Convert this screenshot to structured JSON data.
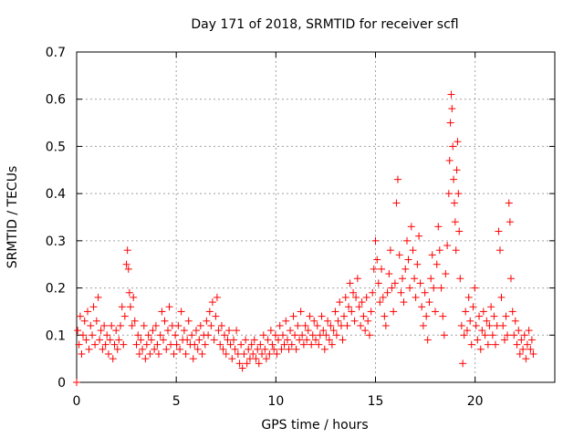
{
  "chart_data": {
    "type": "scatter",
    "title": "Day 171 of 2018, SRMTID for receiver scfl",
    "xlabel": "GPS time / hours",
    "ylabel": "SRMTID / TECUs",
    "xlim": [
      0,
      24
    ],
    "ylim": [
      0,
      0.7
    ],
    "xticks": [
      0,
      5,
      10,
      15,
      20
    ],
    "yticks": [
      0,
      0.1,
      0.2,
      0.3,
      0.4,
      0.5,
      0.6,
      0.7
    ],
    "xtick_labels": [
      "0",
      "5",
      "10",
      "15",
      "20"
    ],
    "ytick_labels": [
      "0",
      "0.1",
      "0.2",
      "0.3",
      "0.4",
      "0.5",
      "0.6",
      "0.7"
    ],
    "grid": true,
    "marker": "+",
    "colors": {
      "series": "#ff0000",
      "axis": "#000000",
      "grid": "#a0a0a0",
      "background": "#ffffff"
    },
    "series": [
      {
        "name": "SRMTID",
        "points": [
          [
            0.0,
            0.0
          ],
          [
            0.05,
            0.11
          ],
          [
            0.12,
            0.08
          ],
          [
            0.18,
            0.14
          ],
          [
            0.25,
            0.06
          ],
          [
            0.32,
            0.1
          ],
          [
            0.4,
            0.13
          ],
          [
            0.48,
            0.09
          ],
          [
            0.55,
            0.15
          ],
          [
            0.62,
            0.07
          ],
          [
            0.7,
            0.12
          ],
          [
            0.78,
            0.1
          ],
          [
            0.85,
            0.16
          ],
          [
            0.92,
            0.08
          ],
          [
            1.0,
            0.13
          ],
          [
            1.08,
            0.18
          ],
          [
            1.15,
            0.09
          ],
          [
            1.22,
            0.11
          ],
          [
            1.3,
            0.07
          ],
          [
            1.38,
            0.12
          ],
          [
            1.45,
            0.08
          ],
          [
            1.52,
            0.1
          ],
          [
            1.6,
            0.06
          ],
          [
            1.68,
            0.09
          ],
          [
            1.75,
            0.12
          ],
          [
            1.82,
            0.05
          ],
          [
            1.9,
            0.08
          ],
          [
            1.98,
            0.11
          ],
          [
            2.05,
            0.07
          ],
          [
            2.12,
            0.09
          ],
          [
            2.2,
            0.12
          ],
          [
            2.28,
            0.16
          ],
          [
            2.35,
            0.08
          ],
          [
            2.42,
            0.14
          ],
          [
            2.5,
            0.25
          ],
          [
            2.55,
            0.28
          ],
          [
            2.6,
            0.24
          ],
          [
            2.65,
            0.19
          ],
          [
            2.7,
            0.16
          ],
          [
            2.78,
            0.12
          ],
          [
            2.85,
            0.18
          ],
          [
            2.92,
            0.13
          ],
          [
            3.0,
            0.08
          ],
          [
            3.08,
            0.1
          ],
          [
            3.15,
            0.06
          ],
          [
            3.22,
            0.09
          ],
          [
            3.3,
            0.07
          ],
          [
            3.38,
            0.12
          ],
          [
            3.45,
            0.05
          ],
          [
            3.52,
            0.08
          ],
          [
            3.6,
            0.1
          ],
          [
            3.68,
            0.06
          ],
          [
            3.75,
            0.09
          ],
          [
            3.82,
            0.11
          ],
          [
            3.9,
            0.07
          ],
          [
            3.98,
            0.12
          ],
          [
            4.05,
            0.08
          ],
          [
            4.12,
            0.06
          ],
          [
            4.2,
            0.1
          ],
          [
            4.28,
            0.15
          ],
          [
            4.35,
            0.09
          ],
          [
            4.42,
            0.13
          ],
          [
            4.5,
            0.07
          ],
          [
            4.58,
            0.11
          ],
          [
            4.65,
            0.16
          ],
          [
            4.72,
            0.08
          ],
          [
            4.8,
            0.12
          ],
          [
            4.88,
            0.06
          ],
          [
            4.95,
            0.1
          ],
          [
            5.02,
            0.08
          ],
          [
            5.1,
            0.12
          ],
          [
            5.18,
            0.07
          ],
          [
            5.25,
            0.15
          ],
          [
            5.32,
            0.09
          ],
          [
            5.4,
            0.11
          ],
          [
            5.48,
            0.06
          ],
          [
            5.55,
            0.09
          ],
          [
            5.62,
            0.13
          ],
          [
            5.7,
            0.08
          ],
          [
            5.78,
            0.1
          ],
          [
            5.85,
            0.05
          ],
          [
            5.92,
            0.08
          ],
          [
            6.0,
            0.11
          ],
          [
            6.08,
            0.07
          ],
          [
            6.15,
            0.09
          ],
          [
            6.22,
            0.12
          ],
          [
            6.3,
            0.06
          ],
          [
            6.38,
            0.1
          ],
          [
            6.45,
            0.08
          ],
          [
            6.52,
            0.13
          ],
          [
            6.6,
            0.1
          ],
          [
            6.68,
            0.15
          ],
          [
            6.75,
            0.12
          ],
          [
            6.82,
            0.17
          ],
          [
            6.9,
            0.09
          ],
          [
            6.98,
            0.14
          ],
          [
            7.05,
            0.18
          ],
          [
            7.12,
            0.11
          ],
          [
            7.2,
            0.08
          ],
          [
            7.28,
            0.12
          ],
          [
            7.35,
            0.07
          ],
          [
            7.42,
            0.1
          ],
          [
            7.5,
            0.06
          ],
          [
            7.58,
            0.09
          ],
          [
            7.65,
            0.11
          ],
          [
            7.72,
            0.08
          ],
          [
            7.8,
            0.05
          ],
          [
            7.88,
            0.09
          ],
          [
            7.95,
            0.07
          ],
          [
            8.02,
            0.11
          ],
          [
            8.1,
            0.06
          ],
          [
            8.18,
            0.04
          ],
          [
            8.25,
            0.08
          ],
          [
            8.32,
            0.03
          ],
          [
            8.4,
            0.06
          ],
          [
            8.48,
            0.09
          ],
          [
            8.55,
            0.04
          ],
          [
            8.62,
            0.07
          ],
          [
            8.7,
            0.05
          ],
          [
            8.78,
            0.08
          ],
          [
            8.85,
            0.06
          ],
          [
            8.92,
            0.09
          ],
          [
            9.0,
            0.05
          ],
          [
            9.08,
            0.07
          ],
          [
            9.15,
            0.04
          ],
          [
            9.22,
            0.08
          ],
          [
            9.3,
            0.06
          ],
          [
            9.38,
            0.1
          ],
          [
            9.45,
            0.07
          ],
          [
            9.52,
            0.05
          ],
          [
            9.6,
            0.09
          ],
          [
            9.68,
            0.06
          ],
          [
            9.75,
            0.11
          ],
          [
            9.82,
            0.08
          ],
          [
            9.9,
            0.07
          ],
          [
            9.98,
            0.1
          ],
          [
            10.05,
            0.06
          ],
          [
            10.12,
            0.09
          ],
          [
            10.2,
            0.12
          ],
          [
            10.28,
            0.07
          ],
          [
            10.35,
            0.1
          ],
          [
            10.42,
            0.08
          ],
          [
            10.5,
            0.13
          ],
          [
            10.58,
            0.09
          ],
          [
            10.65,
            0.07
          ],
          [
            10.72,
            0.11
          ],
          [
            10.8,
            0.08
          ],
          [
            10.88,
            0.14
          ],
          [
            10.95,
            0.1
          ],
          [
            11.02,
            0.07
          ],
          [
            11.1,
            0.12
          ],
          [
            11.18,
            0.09
          ],
          [
            11.25,
            0.15
          ],
          [
            11.32,
            0.1
          ],
          [
            11.4,
            0.08
          ],
          [
            11.48,
            0.12
          ],
          [
            11.55,
            0.09
          ],
          [
            11.62,
            0.11
          ],
          [
            11.7,
            0.14
          ],
          [
            11.78,
            0.08
          ],
          [
            11.85,
            0.1
          ],
          [
            11.92,
            0.13
          ],
          [
            12.0,
            0.09
          ],
          [
            12.08,
            0.12
          ],
          [
            12.15,
            0.08
          ],
          [
            12.22,
            0.1
          ],
          [
            12.3,
            0.14
          ],
          [
            12.38,
            0.11
          ],
          [
            12.45,
            0.07
          ],
          [
            12.52,
            0.1
          ],
          [
            12.6,
            0.13
          ],
          [
            12.68,
            0.09
          ],
          [
            12.75,
            0.12
          ],
          [
            12.82,
            0.08
          ],
          [
            12.9,
            0.11
          ],
          [
            12.98,
            0.15
          ],
          [
            13.05,
            0.1
          ],
          [
            13.12,
            0.13
          ],
          [
            13.2,
            0.17
          ],
          [
            13.28,
            0.12
          ],
          [
            13.35,
            0.09
          ],
          [
            13.42,
            0.14
          ],
          [
            13.5,
            0.18
          ],
          [
            13.58,
            0.12
          ],
          [
            13.65,
            0.16
          ],
          [
            13.72,
            0.21
          ],
          [
            13.8,
            0.15
          ],
          [
            13.88,
            0.19
          ],
          [
            13.95,
            0.13
          ],
          [
            14.02,
            0.18
          ],
          [
            14.1,
            0.22
          ],
          [
            14.18,
            0.16
          ],
          [
            14.25,
            0.12
          ],
          [
            14.32,
            0.17
          ],
          [
            14.4,
            0.14
          ],
          [
            14.48,
            0.11
          ],
          [
            14.55,
            0.18
          ],
          [
            14.62,
            0.13
          ],
          [
            14.7,
            0.1
          ],
          [
            14.78,
            0.15
          ],
          [
            14.85,
            0.19
          ],
          [
            14.92,
            0.24
          ],
          [
            15.0,
            0.3
          ],
          [
            15.08,
            0.26
          ],
          [
            15.15,
            0.21
          ],
          [
            15.22,
            0.17
          ],
          [
            15.3,
            0.24
          ],
          [
            15.38,
            0.18
          ],
          [
            15.45,
            0.14
          ],
          [
            15.52,
            0.12
          ],
          [
            15.6,
            0.19
          ],
          [
            15.68,
            0.23
          ],
          [
            15.75,
            0.28
          ],
          [
            15.82,
            0.2
          ],
          [
            15.9,
            0.15
          ],
          [
            15.98,
            0.21
          ],
          [
            16.05,
            0.38
          ],
          [
            16.12,
            0.43
          ],
          [
            16.2,
            0.27
          ],
          [
            16.28,
            0.19
          ],
          [
            16.35,
            0.22
          ],
          [
            16.42,
            0.17
          ],
          [
            16.5,
            0.24
          ],
          [
            16.58,
            0.3
          ],
          [
            16.65,
            0.26
          ],
          [
            16.72,
            0.2
          ],
          [
            16.8,
            0.33
          ],
          [
            16.88,
            0.28
          ],
          [
            16.95,
            0.22
          ],
          [
            17.02,
            0.18
          ],
          [
            17.1,
            0.25
          ],
          [
            17.18,
            0.31
          ],
          [
            17.25,
            0.21
          ],
          [
            17.32,
            0.16
          ],
          [
            17.4,
            0.12
          ],
          [
            17.48,
            0.19
          ],
          [
            17.55,
            0.14
          ],
          [
            17.62,
            0.09
          ],
          [
            17.7,
            0.17
          ],
          [
            17.78,
            0.22
          ],
          [
            17.85,
            0.27
          ],
          [
            17.92,
            0.2
          ],
          [
            18.0,
            0.15
          ],
          [
            18.08,
            0.25
          ],
          [
            18.15,
            0.33
          ],
          [
            18.22,
            0.28
          ],
          [
            18.3,
            0.2
          ],
          [
            18.38,
            0.14
          ],
          [
            18.45,
            0.1
          ],
          [
            18.52,
            0.23
          ],
          [
            18.6,
            0.29
          ],
          [
            18.68,
            0.4
          ],
          [
            18.72,
            0.47
          ],
          [
            18.76,
            0.55
          ],
          [
            18.8,
            0.61
          ],
          [
            18.84,
            0.58
          ],
          [
            18.88,
            0.5
          ],
          [
            18.92,
            0.43
          ],
          [
            18.96,
            0.38
          ],
          [
            19.0,
            0.34
          ],
          [
            19.04,
            0.28
          ],
          [
            19.08,
            0.45
          ],
          [
            19.12,
            0.51
          ],
          [
            19.16,
            0.4
          ],
          [
            19.2,
            0.32
          ],
          [
            19.25,
            0.22
          ],
          [
            19.32,
            0.12
          ],
          [
            19.38,
            0.04
          ],
          [
            19.45,
            0.1
          ],
          [
            19.52,
            0.15
          ],
          [
            19.6,
            0.11
          ],
          [
            19.68,
            0.18
          ],
          [
            19.75,
            0.13
          ],
          [
            19.82,
            0.08
          ],
          [
            19.9,
            0.16
          ],
          [
            19.98,
            0.2
          ],
          [
            20.05,
            0.12
          ],
          [
            20.12,
            0.09
          ],
          [
            20.2,
            0.14
          ],
          [
            20.28,
            0.07
          ],
          [
            20.35,
            0.11
          ],
          [
            20.42,
            0.15
          ],
          [
            20.5,
            0.1
          ],
          [
            20.58,
            0.13
          ],
          [
            20.65,
            0.08
          ],
          [
            20.72,
            0.12
          ],
          [
            20.8,
            0.16
          ],
          [
            20.88,
            0.1
          ],
          [
            20.95,
            0.14
          ],
          [
            21.02,
            0.08
          ],
          [
            21.1,
            0.12
          ],
          [
            21.18,
            0.32
          ],
          [
            21.25,
            0.28
          ],
          [
            21.32,
            0.18
          ],
          [
            21.4,
            0.12
          ],
          [
            21.48,
            0.09
          ],
          [
            21.55,
            0.14
          ],
          [
            21.62,
            0.1
          ],
          [
            21.7,
            0.38
          ],
          [
            21.75,
            0.34
          ],
          [
            21.8,
            0.22
          ],
          [
            21.88,
            0.15
          ],
          [
            21.95,
            0.1
          ],
          [
            22.02,
            0.13
          ],
          [
            22.1,
            0.08
          ],
          [
            22.18,
            0.11
          ],
          [
            22.25,
            0.06
          ],
          [
            22.32,
            0.09
          ],
          [
            22.4,
            0.07
          ],
          [
            22.48,
            0.1
          ],
          [
            22.55,
            0.05
          ],
          [
            22.62,
            0.08
          ],
          [
            22.7,
            0.11
          ],
          [
            22.78,
            0.07
          ],
          [
            22.85,
            0.09
          ],
          [
            22.92,
            0.06
          ]
        ]
      }
    ]
  }
}
